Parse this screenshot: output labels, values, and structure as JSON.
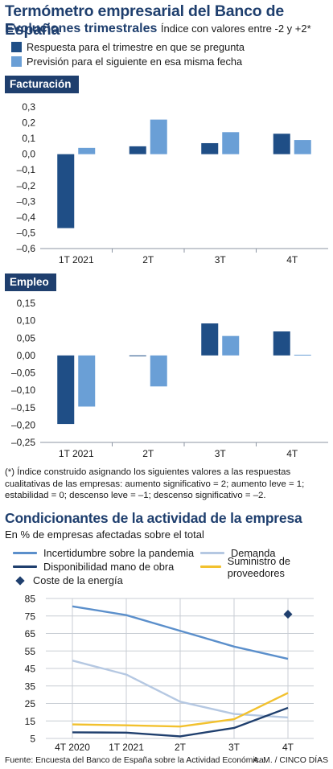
{
  "header": {
    "title": "Termómetro empresarial del Banco de España",
    "subtitle_bold": "Evoluciones trimestrales",
    "subtitle_note": "Índice con valores entre -2 y +2*"
  },
  "legend_top": [
    {
      "label": "Respuesta para el trimestre en que se pregunta",
      "color": "#1f4e86"
    },
    {
      "label": "Previsión para el siguiente en esa misma fecha",
      "color": "#6a9fd6"
    }
  ],
  "chart_data": [
    {
      "type": "bar",
      "title": "Facturación",
      "categories": [
        "1T 2021",
        "2T",
        "3T",
        "4T"
      ],
      "series": [
        {
          "name": "Respuesta para el trimestre en que se pregunta",
          "values": [
            -0.47,
            0.05,
            0.07,
            0.13
          ],
          "color": "#1f4e86"
        },
        {
          "name": "Previsión para el siguiente en esa misma fecha",
          "values": [
            0.04,
            0.22,
            0.14,
            0.09
          ],
          "color": "#6a9fd6"
        }
      ],
      "ylim": [
        -0.6,
        0.3
      ],
      "yticks": [
        0.3,
        0.2,
        0.1,
        0.0,
        -0.1,
        -0.2,
        -0.3,
        -0.4,
        -0.5,
        -0.6
      ],
      "ytick_labels": [
        "0,3",
        "0,2",
        "0,1",
        "0,0",
        "–0,1",
        "–0,2",
        "–0,3",
        "–0,4",
        "–0,5",
        "–0,6"
      ],
      "grid": false
    },
    {
      "type": "bar",
      "title": "Empleo",
      "categories": [
        "1T 2021",
        "2T",
        "3T",
        "4T"
      ],
      "series": [
        {
          "name": "Respuesta para el trimestre en que se pregunta",
          "values": [
            -0.197,
            -0.002,
            0.092,
            0.069
          ],
          "color": "#1f4e86"
        },
        {
          "name": "Previsión para el siguiente en esa misma fecha",
          "values": [
            -0.147,
            -0.089,
            0.056,
            0.002
          ],
          "color": "#6a9fd6"
        }
      ],
      "ylim": [
        -0.25,
        0.15
      ],
      "yticks": [
        0.15,
        0.1,
        0.05,
        0.0,
        -0.05,
        -0.1,
        -0.15,
        -0.2,
        -0.25
      ],
      "ytick_labels": [
        "0,15",
        "0,10",
        "0,05",
        "0,00",
        "–0,05",
        "–0,10",
        "–0,15",
        "–0,20",
        "–0,25"
      ],
      "grid": false
    },
    {
      "type": "line",
      "title": "Condicionantes de la actividad de la empresa",
      "subtitle": "En % de empresas afectadas sobre el total",
      "categories": [
        "4T 2020",
        "1T 2021",
        "2T",
        "3T",
        "4T"
      ],
      "series": [
        {
          "name": "Incertidumbre sobre la pandemia",
          "values": [
            80.5,
            75.5,
            66.5,
            57.5,
            50.5
          ],
          "color": "#5b8fcb"
        },
        {
          "name": "Demanda",
          "values": [
            49.5,
            41.5,
            26,
            19,
            17
          ],
          "color": "#b5c8e2"
        },
        {
          "name": "Disponibilidad mano de obra",
          "values": [
            8.5,
            8.3,
            6.2,
            11,
            22.5
          ],
          "color": "#1f3f6e"
        },
        {
          "name": "Suministro de proveedores",
          "values": [
            13,
            12.5,
            11.8,
            16,
            31
          ],
          "color": "#f2c12e"
        },
        {
          "name": "Coste de la energía",
          "values": [
            null,
            null,
            null,
            null,
            76
          ],
          "color": "#1f3f6e",
          "marker": "diamond"
        }
      ],
      "ylim": [
        5,
        85
      ],
      "yticks": [
        5,
        15,
        25,
        35,
        45,
        55,
        65,
        75,
        85
      ],
      "grid": true
    }
  ],
  "footnote": "(*) Índice construido asignando los siguientes valores a las respuestas cualitativas de las empresas: aumento significativo = 2; aumento leve = 1; estabilidad = 0; descenso leve = –1; descenso significativo = –2.",
  "source": "Fuente: Encuesta del Banco de España sobre la Actividad Económica.",
  "credit": "A. M. / CINCO DÍAS"
}
